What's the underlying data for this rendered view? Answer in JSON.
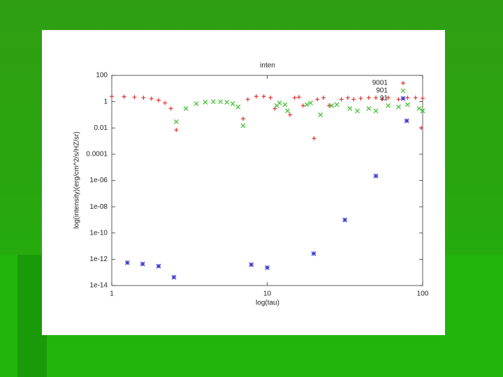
{
  "chart_data": {
    "type": "scatter",
    "title": "inten",
    "x_label": "log(tau)",
    "y_label": "log(intensity)(erg/cm^2/s/HZ/sr)",
    "xlog": true,
    "ylog": true,
    "legend": "top-right",
    "grid": false,
    "xlim": [
      1,
      100
    ],
    "xticks": [
      1,
      10,
      100
    ],
    "ylim": [
      1e-14,
      100
    ],
    "yticks": [
      100,
      1,
      0.01,
      0.0001,
      {
        "value": 1e-06,
        "label": "1e-06"
      },
      {
        "value": 1e-08,
        "label": "1e-08"
      },
      {
        "value": 1e-10,
        "label": "1e-10"
      },
      {
        "value": 1e-12,
        "label": "1e-12"
      },
      {
        "value": 1e-14,
        "label": "1e-14"
      }
    ],
    "series": [
      {
        "name": "9001",
        "color": "#e0302a",
        "marker": "plus",
        "x": [
          1,
          1.2,
          1.4,
          1.6,
          1.8,
          2.0,
          2.2,
          2.4,
          2.6,
          7,
          7.5,
          8.5,
          9.5,
          10.5,
          11.2,
          14,
          15,
          16,
          17,
          20,
          21,
          23,
          25,
          30,
          33,
          36,
          40,
          45,
          50,
          55,
          60,
          70,
          80,
          90,
          98,
          100
        ],
        "values": [
          2.5,
          2.4,
          2.2,
          2.0,
          1.7,
          1.3,
          0.8,
          0.3,
          0.007,
          0.05,
          1.5,
          2.5,
          2.5,
          2,
          0.3,
          0.1,
          2,
          2.2,
          0.5,
          0.0016,
          1.5,
          2,
          0.5,
          1.5,
          2,
          1.5,
          1.8,
          2,
          2,
          1.5,
          2,
          1.5,
          2,
          2,
          0.01,
          1.8
        ]
      },
      {
        "name": "901",
        "color": "#3cbf2c",
        "marker": "cross",
        "x": [
          2.6,
          3,
          3.5,
          4,
          4.5,
          5,
          5.5,
          6,
          6.5,
          7,
          11.5,
          12,
          13,
          13.5,
          18,
          19,
          22,
          26,
          28,
          34,
          38,
          45,
          50,
          60,
          70,
          80,
          95,
          100
        ],
        "values": [
          0.03,
          0.3,
          0.7,
          0.9,
          1,
          1,
          0.9,
          0.7,
          0.4,
          0.015,
          0.5,
          0.8,
          0.6,
          0.2,
          0.6,
          0.8,
          0.1,
          0.5,
          0.6,
          0.3,
          0.2,
          0.3,
          0.2,
          0.5,
          0.4,
          0.6,
          0.3,
          0.2
        ]
      },
      {
        "name": "91",
        "color": "#3a3ad0",
        "marker": "star",
        "x": [
          1.26,
          1.58,
          2.0,
          2.51,
          7.9,
          10,
          19.9,
          31.6,
          50,
          79
        ],
        "values": [
          5.5e-13,
          4.4e-13,
          3e-13,
          4.3e-14,
          3.9e-13,
          2.3e-13,
          2.7e-12,
          1e-09,
          2.2e-06,
          0.035
        ]
      }
    ]
  }
}
